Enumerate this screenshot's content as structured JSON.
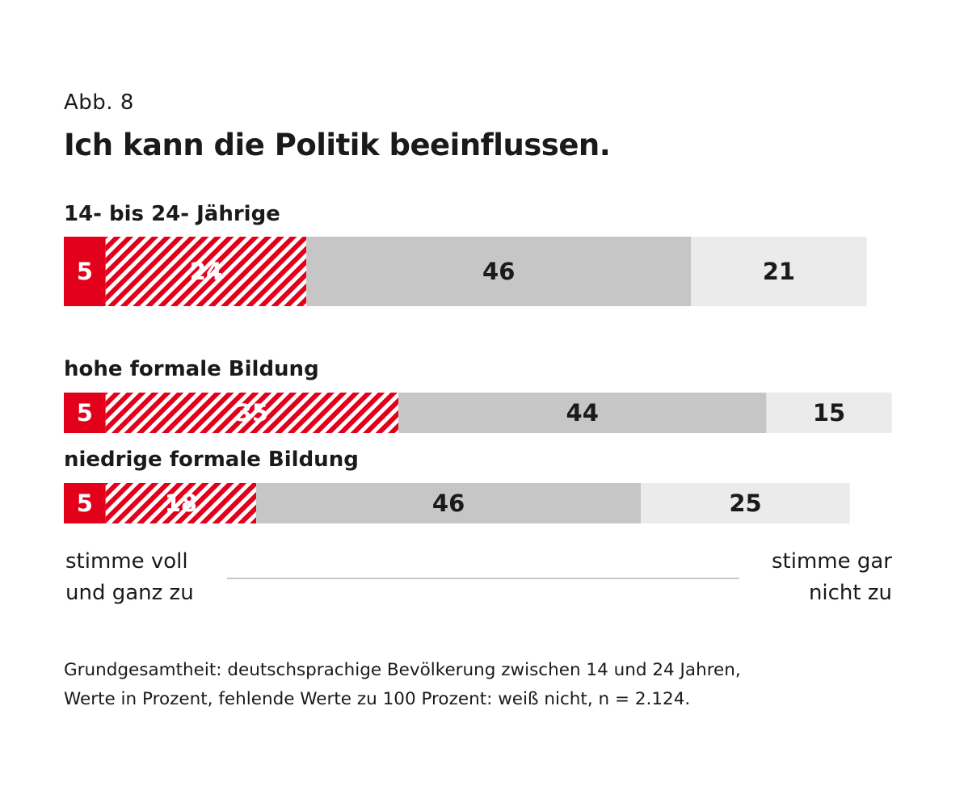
{
  "figure_label": "Abb. 8",
  "chart_data": {
    "type": "bar",
    "orientation": "horizontal",
    "stacked": true,
    "title": "Ich kann die Politik beeinflussen.",
    "unit": "Prozent",
    "segment_colors": [
      "#e3001b",
      "#e3001b",
      "#c6c6c6",
      "#ebebeb"
    ],
    "hatched_segment_index": 1,
    "rows": [
      {
        "label": "14- bis 24- Jährige",
        "values": [
          5,
          24,
          46,
          21
        ]
      },
      {
        "label": "hohe formale Bildung",
        "values": [
          5,
          35,
          44,
          15
        ]
      },
      {
        "label": "niedrige formale Bildung",
        "values": [
          5,
          18,
          46,
          25
        ]
      }
    ],
    "scale": {
      "left_label": [
        "stimme voll",
        "und ganz zu"
      ],
      "right_label": [
        "stimme gar",
        "nicht zu"
      ]
    }
  },
  "footnote": [
    "Grundgesamtheit: deutschsprachige Bevölkerung zwischen 14 und 24 Jahren,",
    "Werte in Prozent, fehlende Werte zu 100 Prozent: weiß nicht, n = 2.124."
  ]
}
